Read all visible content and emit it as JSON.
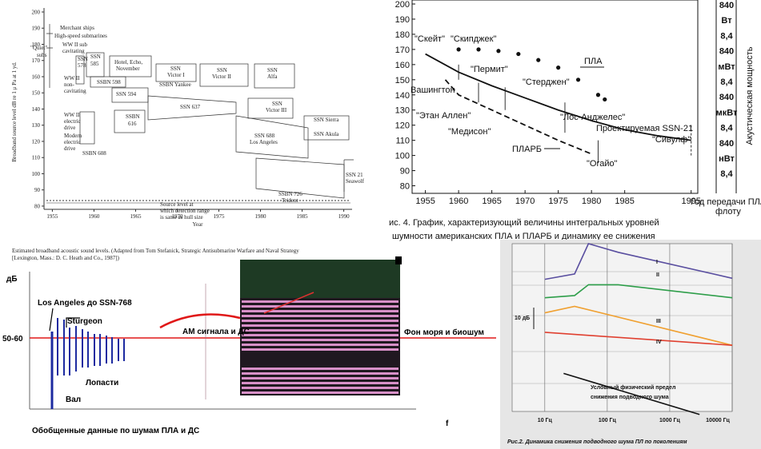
{
  "chart_data": [
    {
      "type": "region",
      "ylabel": "Broadband source level dB re 1 μ Pa at 1 yd.",
      "xlabel": "Year",
      "xlim": [
        1954,
        1991
      ],
      "xticks": [
        1955,
        1960,
        1965,
        1970,
        1975,
        1980,
        1985,
        1990
      ],
      "ylim": [
        78,
        200
      ],
      "yticks": [
        80,
        90,
        100,
        110,
        120,
        130,
        140,
        150,
        160,
        170,
        180,
        190,
        200
      ],
      "annotations": [
        "Merchant ships",
        "High-speed submarines",
        "WW II sub",
        "cavitating",
        "\"Quiet\"",
        "subs",
        "WW II",
        "non-",
        "cavitating",
        "WW II",
        "electric",
        "drive",
        "Modern",
        "electric",
        "drive",
        "SSN",
        "578",
        "SSN",
        "585",
        "Hotel, Echo,",
        "November",
        "SSBN 598",
        "SSN 594",
        "SSBN 608",
        "SSBN",
        "616",
        "SSN",
        "Victor I",
        "SSBN Yankee",
        "SSN",
        "Victor II",
        "SSN",
        "Alfa",
        "SSN 637",
        "SSN",
        "Victor III",
        "SSN Sierra",
        "SSN Akula",
        "SSN 688",
        "Los Angeles",
        "SSN 21",
        "Seawolf",
        "SSBN 726",
        "Trident",
        "Source level at",
        "which detection range",
        "is same as hull size"
      ],
      "caption": [
        "Estimated broadband acoustic sound levels. (Adapted from Tom Stefanick, Strategic Antisubmarine Warfare and Naval Strategy",
        "[Lexington, Mass.: D. C. Heath and Co., 1987])"
      ]
    },
    {
      "type": "line",
      "xlim": [
        1953,
        1996
      ],
      "xticks": [
        1955,
        1960,
        1965,
        1970,
        1975,
        1980,
        1985,
        1995
      ],
      "ylim": [
        75,
        200
      ],
      "yticks": [
        80,
        90,
        100,
        110,
        120,
        130,
        140,
        150,
        160,
        170,
        180,
        190,
        200
      ],
      "series": [
        {
          "name": "ПЛА",
          "color": "#111111",
          "dash": "solid",
          "x": [
            1955,
            1960,
            1965,
            1970,
            1975,
            1980,
            1985,
            1990,
            1995
          ],
          "values": [
            167,
            155,
            146,
            138,
            130,
            123,
            117,
            113,
            110
          ]
        },
        {
          "name": "ПЛАРБ",
          "color": "#111111",
          "dash": "dashed",
          "x": [
            1958,
            1960,
            1965,
            1970,
            1975,
            1980
          ],
          "values": [
            150,
            140,
            130,
            120,
            110,
            101
          ]
        },
        {
          "color": "#111111",
          "dash": "dotted",
          "x": [
            1960,
            1963,
            1966,
            1969,
            1972,
            1975,
            1978,
            1981,
            1982
          ],
          "values": [
            170,
            170,
            169,
            167,
            163,
            158,
            150,
            140,
            137
          ]
        }
      ],
      "annotations": [
        "\"Скейт\"",
        "\"Скипджек\"",
        "\"Пермит\"",
        "Вашингтон",
        "\"Стерджен\"",
        "\"Этан Аллен\"",
        "\"Лос-Анджелес\"",
        "Проектируемая SSN-21",
        "\"Медисон\"",
        "\"Сивулф\"",
        "\"Огайо\""
      ],
      "xlabel": [
        "Год передачи ПЛА",
        "флоту"
      ],
      "power_title": "Акустическая мощность",
      "power_labels": [
        "840",
        "Вт",
        "8,4",
        "840",
        "мВт",
        "8,4",
        "840",
        "мкВт",
        "8,4",
        "840",
        "нВт",
        "8,4"
      ],
      "caption": [
        "ис. 4. График, характеризующий величины интегральных уровней",
        "шумности американских ПЛА и ПЛАРБ и динамику ее снижения"
      ]
    },
    {
      "type": "spectrum",
      "ylabel": "дБ",
      "level": "50-60",
      "xlabel": "f",
      "annotations": [
        "Los Angeles до SSN-768",
        "Sturgeon",
        "Лопасти",
        "Вал",
        "АМ сигнала и ДС",
        "Фон моря и биошум"
      ],
      "title": "Обобщенные данные по шумам ПЛА и ДС"
    },
    {
      "type": "line",
      "log_x": true,
      "xlim": [
        3,
        10000
      ],
      "xticks": [
        {
          "value": 10,
          "label": "10 Гц"
        },
        {
          "value": 100,
          "label": "100 Гц"
        },
        {
          "value": 1000,
          "label": "1000 Гц"
        },
        {
          "value": 10000,
          "label": "10000 Гц"
        }
      ],
      "ylim": [
        0,
        85
      ],
      "scale_label": "10 дБ",
      "series": [
        {
          "name": "I",
          "color": "#5a4fa0",
          "dash": "solid",
          "x": [
            10,
            30,
            50,
            150,
            10000
          ],
          "values": [
            68.5,
            71,
            85,
            81,
            69
          ]
        },
        {
          "name": "II",
          "color": "#2e9e4a",
          "dash": "solid",
          "x": [
            10,
            30,
            50,
            150,
            10000
          ],
          "values": [
            60,
            61,
            66,
            66,
            60
          ]
        },
        {
          "name": "III",
          "color": "#f0a030",
          "dash": "solid",
          "x": [
            10,
            30,
            10000
          ],
          "values": [
            53,
            56,
            38
          ]
        },
        {
          "name": "IV",
          "color": "#e04030",
          "dash": "solid",
          "x": [
            10,
            10000
          ],
          "values": [
            44,
            38
          ]
        },
        {
          "color": "#111111",
          "dash": "solid",
          "x": [
            20,
            3000
          ],
          "values": [
            25,
            6
          ]
        }
      ],
      "annotations": [
        "Условный физический предел",
        "снижения подводного шума"
      ],
      "caption": "Рис.2. Динамика снижения подводного шума ПЛ по поколениям"
    }
  ]
}
